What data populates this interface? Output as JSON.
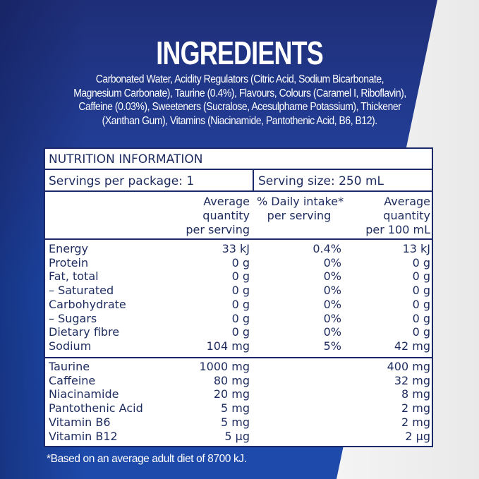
{
  "heading": "INGREDIENTS",
  "ingredients": [
    "Carbonated Water, Acidity Regulators (Citric Acid, Sodium Bicarbonate,",
    "Magnesium Carbonate), Taurine (0.4%), Flavours, Colours (Caramel I, Riboflavin),",
    "Caffeine (0.03%), Sweeteners (Sucralose, Acesulphame Potassium), Thickener",
    "(Xanthan Gum), Vitamins (Niacinamide, Pantothenic Acid, B6, B12)."
  ],
  "nutrition": {
    "title": "NUTRITION INFORMATION",
    "servings_per_package": "Servings per package: 1",
    "serving_size": "Serving size: 250 mL",
    "headers": [
      [
        "Average",
        "quantity",
        "per serving"
      ],
      [
        "% Daily intake*",
        "per serving"
      ],
      [
        "Average",
        "quantity",
        "per 100 mL"
      ]
    ],
    "rows": [
      {
        "name": "Energy",
        "per_serving": "33 kJ",
        "daily": "0.4%",
        "per_100": "13 kJ"
      },
      {
        "name": "Protein",
        "per_serving": "0 g",
        "daily": "0%",
        "per_100": "0 g"
      },
      {
        "name": "Fat, total",
        "per_serving": "0 g",
        "daily": "0%",
        "per_100": "0 g"
      },
      {
        "name": "– Saturated",
        "per_serving": "0 g",
        "daily": "0%",
        "per_100": "0 g"
      },
      {
        "name": "Carbohydrate",
        "per_serving": "0 g",
        "daily": "0%",
        "per_100": "0 g"
      },
      {
        "name": "– Sugars",
        "per_serving": "0 g",
        "daily": "0%",
        "per_100": "0 g"
      },
      {
        "name": "Dietary fibre",
        "per_serving": "0 g",
        "daily": "0%",
        "per_100": "0 g"
      },
      {
        "name": "Sodium",
        "per_serving": "104 mg",
        "daily": "5%",
        "per_100": "42 mg"
      }
    ],
    "extras": [
      {
        "name": "Taurine",
        "per_serving": "1000 mg",
        "per_100": "400 mg"
      },
      {
        "name": "Caffeine",
        "per_serving": "80 mg",
        "per_100": "32 mg"
      },
      {
        "name": "Niacinamide",
        "per_serving": "20 mg",
        "per_100": "8 mg"
      },
      {
        "name": "Pantothenic Acid",
        "per_serving": "5 mg",
        "per_100": "2 mg"
      },
      {
        "name": "Vitamin B6",
        "per_serving": "5 mg",
        "per_100": "2 mg"
      },
      {
        "name": "Vitamin B12",
        "per_serving": "5 µg",
        "per_100": "2 µg"
      }
    ]
  },
  "footnote": "*Based on an average adult diet of 8700 kJ.",
  "colors": {
    "brand_blue": "#1e3c94",
    "table_border": "#1c2a6a",
    "text": "#1d2b5e"
  }
}
